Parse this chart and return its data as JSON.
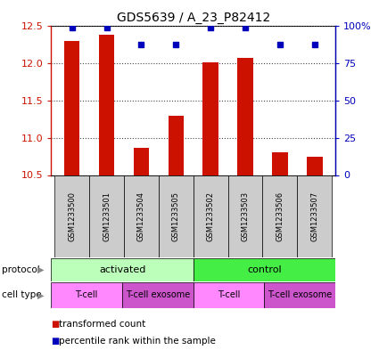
{
  "title": "GDS5639 / A_23_P82412",
  "samples": [
    "GSM1233500",
    "GSM1233501",
    "GSM1233504",
    "GSM1233505",
    "GSM1233502",
    "GSM1233503",
    "GSM1233506",
    "GSM1233507"
  ],
  "transformed_count": [
    12.3,
    12.38,
    10.86,
    11.3,
    12.01,
    12.07,
    10.81,
    10.75
  ],
  "percentile_rank": [
    99,
    99,
    88,
    88,
    99,
    99,
    88,
    88
  ],
  "ylim_left": [
    10.5,
    12.5
  ],
  "ylim_right": [
    0,
    100
  ],
  "yticks_left": [
    10.5,
    11.0,
    11.5,
    12.0,
    12.5
  ],
  "yticks_right": [
    0,
    25,
    50,
    75,
    100
  ],
  "bar_color": "#cc1100",
  "dot_color": "#0000bb",
  "protocol_labels": [
    {
      "label": "activated",
      "span": [
        0,
        4
      ],
      "color": "#bbffbb"
    },
    {
      "label": "control",
      "span": [
        4,
        8
      ],
      "color": "#44ee44"
    }
  ],
  "celltype_labels": [
    {
      "label": "T-cell",
      "span": [
        0,
        2
      ],
      "color": "#ff88ff"
    },
    {
      "label": "T-cell exosome",
      "span": [
        2,
        4
      ],
      "color": "#cc55cc"
    },
    {
      "label": "T-cell",
      "span": [
        4,
        6
      ],
      "color": "#ff88ff"
    },
    {
      "label": "T-cell exosome",
      "span": [
        6,
        8
      ],
      "color": "#cc55cc"
    }
  ],
  "left_axis_color": "#cc1100",
  "right_axis_color": "#0000bb",
  "grid_color": "#444444",
  "sample_bg_color": "#cccccc",
  "legend_items": [
    "transformed count",
    "percentile rank within the sample"
  ],
  "legend_colors": [
    "#cc1100",
    "#0000bb"
  ]
}
